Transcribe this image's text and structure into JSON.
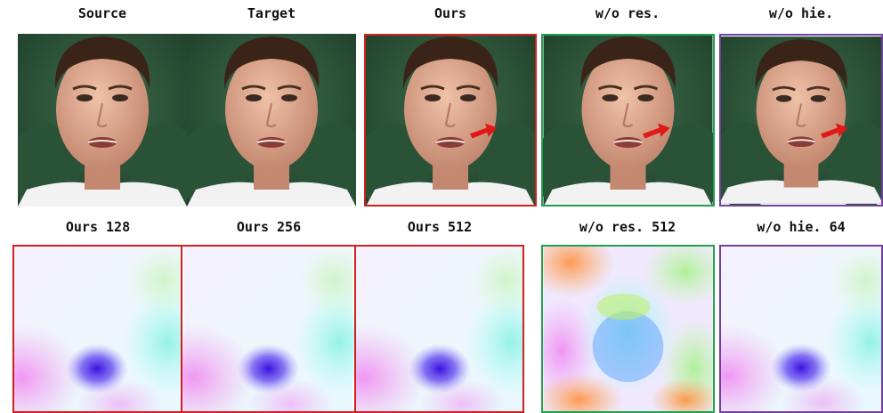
{
  "top_row": {
    "labels": [
      "Source",
      "Target",
      "Ours",
      "w/o res.",
      "w/o hie."
    ]
  },
  "bottom_row": {
    "labels": [
      "Ours 128",
      "Ours 256",
      "Ours 512",
      "w/o res. 512",
      "w/o hie. 64"
    ]
  }
}
